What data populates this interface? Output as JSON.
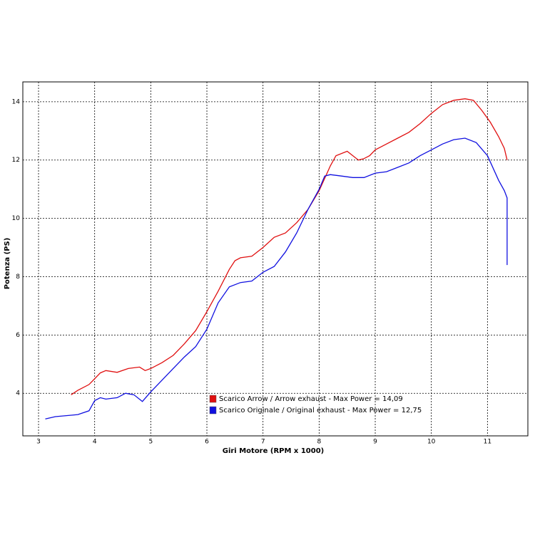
{
  "chart_data": {
    "type": "line",
    "x_label": "Giri Motore (RPM x 1000)",
    "y_label": "Potenza (PS)",
    "xlim": [
      2.72,
      11.72
    ],
    "ylim": [
      2.54,
      14.68
    ],
    "xticks": [
      3,
      4,
      5,
      6,
      7,
      8,
      9,
      10,
      11
    ],
    "yticks": [
      4,
      6,
      8,
      10,
      12,
      14
    ],
    "grid": true,
    "legend": "bottom",
    "series": [
      {
        "name": "Scarico Arrow / Arrow exhaust - Max Power = 14,09",
        "color": "#e01010",
        "x": [
          3.58,
          3.7,
          3.9,
          4.0,
          4.1,
          4.2,
          4.4,
          4.6,
          4.8,
          4.9,
          5.0,
          5.2,
          5.4,
          5.6,
          5.8,
          6.0,
          6.2,
          6.4,
          6.5,
          6.6,
          6.8,
          7.0,
          7.2,
          7.4,
          7.6,
          7.8,
          8.0,
          8.2,
          8.3,
          8.5,
          8.6,
          8.7,
          8.8,
          8.9,
          9.0,
          9.2,
          9.4,
          9.6,
          9.8,
          10.0,
          10.2,
          10.4,
          10.6,
          10.75,
          10.9,
          11.05,
          11.2,
          11.3,
          11.35
        ],
        "values": [
          3.95,
          4.1,
          4.3,
          4.5,
          4.7,
          4.78,
          4.72,
          4.85,
          4.9,
          4.78,
          4.85,
          5.05,
          5.3,
          5.7,
          6.15,
          6.8,
          7.5,
          8.25,
          8.55,
          8.65,
          8.7,
          9.0,
          9.35,
          9.5,
          9.85,
          10.3,
          10.95,
          11.8,
          12.15,
          12.3,
          12.15,
          12.0,
          12.05,
          12.15,
          12.35,
          12.55,
          12.75,
          12.95,
          13.25,
          13.6,
          13.9,
          14.05,
          14.1,
          14.05,
          13.7,
          13.3,
          12.8,
          12.4,
          12.0
        ]
      },
      {
        "name": "Scarico Originale / Original exhaust - Max Power = 12,75",
        "color": "#1010e0",
        "x": [
          3.12,
          3.3,
          3.6,
          3.7,
          3.9,
          4.0,
          4.1,
          4.2,
          4.4,
          4.55,
          4.7,
          4.85,
          5.0,
          5.2,
          5.4,
          5.6,
          5.8,
          6.0,
          6.2,
          6.4,
          6.6,
          6.8,
          7.0,
          7.2,
          7.4,
          7.6,
          7.8,
          8.0,
          8.1,
          8.2,
          8.4,
          8.6,
          8.8,
          9.0,
          9.2,
          9.4,
          9.6,
          9.8,
          10.0,
          10.2,
          10.4,
          10.6,
          10.8,
          11.0,
          11.2,
          11.3,
          11.35,
          11.35
        ],
        "values": [
          3.12,
          3.2,
          3.25,
          3.27,
          3.4,
          3.75,
          3.85,
          3.8,
          3.85,
          4.0,
          3.95,
          3.72,
          4.05,
          4.45,
          4.85,
          5.25,
          5.6,
          6.2,
          7.1,
          7.65,
          7.8,
          7.85,
          8.15,
          8.35,
          8.85,
          9.5,
          10.3,
          11.0,
          11.45,
          11.5,
          11.45,
          11.4,
          11.4,
          11.55,
          11.6,
          11.75,
          11.9,
          12.15,
          12.35,
          12.55,
          12.7,
          12.75,
          12.6,
          12.15,
          11.3,
          10.95,
          10.7,
          8.4
        ]
      }
    ]
  }
}
